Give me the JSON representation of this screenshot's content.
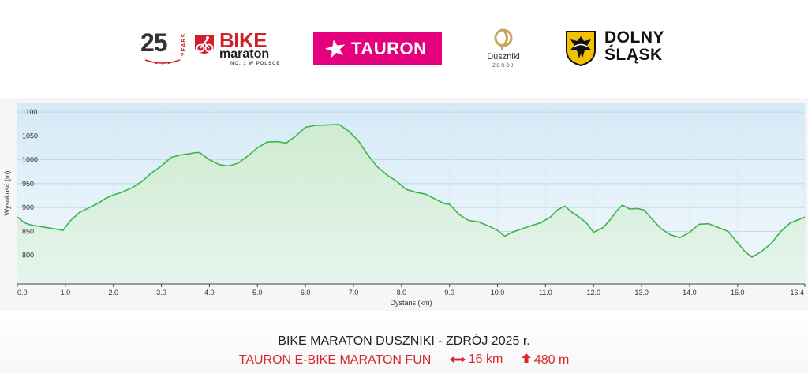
{
  "logos": {
    "years_number": "25",
    "years_label": "YEARS",
    "bike_brand": "BIKE",
    "bike_brand_2": "maraton",
    "bike_tagline": "NO. 1 W POLSCE",
    "tauron": "TAURON",
    "duszniki": "Duszniki",
    "duszniki_sub": "ZDRÓJ",
    "dolny": "DOLNY",
    "slask": "ŚLĄSK"
  },
  "event": {
    "title": "BIKE MARATON DUSZNIKI - ZDRÓJ 2025 r.",
    "subtitle": "TAURON E-BIKE MARATON FUN",
    "distance": "16 km",
    "ascent": "480 m",
    "distance_icon": "double-arrow-icon",
    "ascent_icon": "up-arrow-icon"
  },
  "colors": {
    "line": "#3cb44b",
    "accent": "#d8282f",
    "tauron": "#e5007e"
  },
  "chart_data": {
    "type": "area",
    "title": "",
    "xlabel": "Dystans (km)",
    "ylabel": "Wysokość (m)",
    "xlim": [
      0,
      16.4
    ],
    "ylim": [
      740,
      1120
    ],
    "x_ticks": [
      0.0,
      1.0,
      2.0,
      3.0,
      4.0,
      5.0,
      6.0,
      7.0,
      8.0,
      9.0,
      10.0,
      11.0,
      12.0,
      13.0,
      14.0,
      15.0,
      16.4
    ],
    "x_tick_labels": [
      "0.0",
      "1.0",
      "2.0",
      "3.0",
      "4.0",
      "5.0",
      "6.0",
      "7.0",
      "8.0",
      "9.0",
      "10.0",
      "11.0",
      "12.0",
      "13.0",
      "14.0",
      "15.0",
      "16.4"
    ],
    "y_ticks": [
      800,
      850,
      900,
      950,
      1000,
      1050,
      1100
    ],
    "grid": true,
    "series": [
      {
        "x": [
          0.0,
          0.15,
          0.3,
          0.5,
          0.8,
          0.95,
          1.1,
          1.3,
          1.5,
          1.7,
          1.85,
          2.0,
          2.2,
          2.4,
          2.6,
          2.8,
          3.0,
          3.1,
          3.2,
          3.4,
          3.6,
          3.7,
          3.8,
          4.0,
          4.2,
          4.4,
          4.6,
          4.8,
          5.0,
          5.2,
          5.4,
          5.6,
          5.8,
          6.0,
          6.2,
          6.5,
          6.7,
          6.9,
          7.1,
          7.3,
          7.5,
          7.7,
          7.9,
          8.1,
          8.3,
          8.5,
          8.7,
          8.9,
          9.0,
          9.2,
          9.4,
          9.6,
          9.8,
          10.0,
          10.15,
          10.3,
          10.5,
          10.7,
          10.9,
          11.1,
          11.25,
          11.4,
          11.55,
          11.7,
          11.85,
          12.0,
          12.2,
          12.35,
          12.5,
          12.6,
          12.75,
          12.9,
          13.05,
          13.2,
          13.4,
          13.6,
          13.8,
          14.0,
          14.2,
          14.4,
          14.6,
          14.8,
          15.0,
          15.15,
          15.3,
          15.5,
          15.7,
          15.9,
          16.1,
          16.4
        ],
        "y": [
          880,
          868,
          863,
          860,
          855,
          852,
          872,
          890,
          900,
          910,
          920,
          926,
          933,
          942,
          955,
          973,
          987,
          996,
          1005,
          1010,
          1013,
          1015,
          1015,
          1000,
          990,
          987,
          993,
          1008,
          1025,
          1037,
          1038,
          1035,
          1050,
          1068,
          1072,
          1073,
          1074,
          1060,
          1040,
          1010,
          985,
          968,
          955,
          938,
          932,
          928,
          918,
          908,
          907,
          885,
          873,
          870,
          862,
          852,
          840,
          848,
          855,
          862,
          868,
          880,
          895,
          903,
          890,
          880,
          868,
          848,
          858,
          875,
          895,
          905,
          897,
          898,
          895,
          878,
          856,
          843,
          837,
          848,
          865,
          866,
          858,
          850,
          826,
          808,
          796,
          808,
          825,
          850,
          868,
          880
        ]
      }
    ]
  }
}
